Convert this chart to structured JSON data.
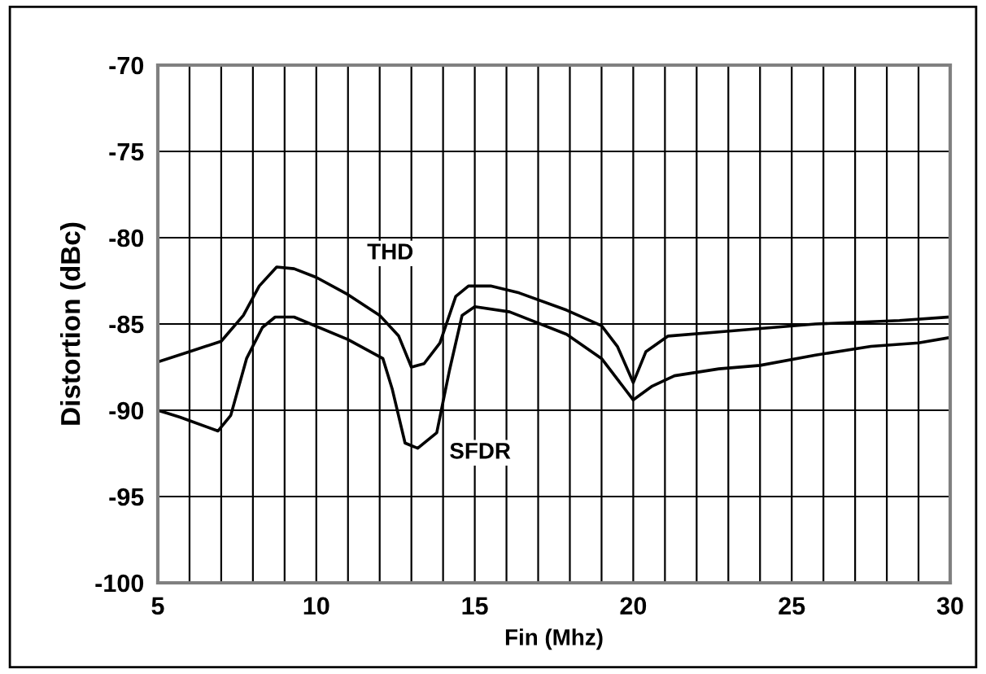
{
  "chart_data": {
    "type": "line",
    "xlabel": "Fin (Mhz)",
    "ylabel": "Distortion (dBc)",
    "xlim": [
      5,
      30
    ],
    "ylim": [
      -100,
      -70
    ],
    "xticks": [
      5,
      {
        "value": 6,
        "label": null
      },
      {
        "value": 7,
        "label": null
      },
      {
        "value": 8,
        "label": null
      },
      {
        "value": 9,
        "label": null
      },
      10,
      {
        "value": 11,
        "label": null
      },
      {
        "value": 12,
        "label": null
      },
      {
        "value": 13,
        "label": null
      },
      {
        "value": 14,
        "label": null
      },
      15,
      {
        "value": 16,
        "label": null
      },
      {
        "value": 17,
        "label": null
      },
      {
        "value": 18,
        "label": null
      },
      {
        "value": 19,
        "label": null
      },
      20,
      {
        "value": 21,
        "label": null
      },
      {
        "value": 22,
        "label": null
      },
      {
        "value": 23,
        "label": null
      },
      {
        "value": 24,
        "label": null
      },
      25,
      {
        "value": 26,
        "label": null
      },
      {
        "value": 27,
        "label": null
      },
      {
        "value": 28,
        "label": null
      },
      {
        "value": 29,
        "label": null
      },
      30
    ],
    "yticks": [
      -100,
      -95,
      -90,
      -85,
      -80,
      -75,
      -70
    ],
    "grid": true,
    "legend": false,
    "series": [
      {
        "name": "THD",
        "color": "#000000",
        "x": [
          5,
          6,
          7,
          7.7,
          8.2,
          8.75,
          9.3,
          10,
          11,
          12,
          12.6,
          13,
          13.4,
          13.9,
          14.4,
          14.8,
          15.5,
          16.4,
          17.9,
          19,
          19.5,
          20,
          20.4,
          21.1,
          23.1,
          25.75,
          28.4,
          29.95
        ],
        "values": [
          -87.2,
          -86.6,
          -86.0,
          -84.5,
          -82.8,
          -81.7,
          -81.8,
          -82.3,
          -83.3,
          -84.5,
          -85.7,
          -87.5,
          -87.3,
          -86.1,
          -83.4,
          -82.8,
          -82.8,
          -83.2,
          -84.2,
          -85.1,
          -86.3,
          -88.4,
          -86.6,
          -85.7,
          -85.4,
          -85.0,
          -84.8,
          -84.6
        ]
      },
      {
        "name": "SFDR",
        "color": "#000000",
        "x": [
          5,
          5.7,
          6.9,
          7.3,
          7.8,
          8.3,
          8.7,
          9.3,
          11,
          12.1,
          12.4,
          12.8,
          13.2,
          13.8,
          14.2,
          14.6,
          15,
          16.1,
          17.9,
          19,
          20,
          20.6,
          21.3,
          22.7,
          24,
          25.75,
          27.5,
          29,
          29.95
        ],
        "values": [
          -90.0,
          -90.4,
          -91.2,
          -90.3,
          -87.0,
          -85.2,
          -84.6,
          -84.6,
          -85.9,
          -87.0,
          -88.8,
          -91.9,
          -92.2,
          -91.3,
          -87.7,
          -84.5,
          -84.0,
          -84.3,
          -85.6,
          -87.0,
          -89.4,
          -88.6,
          -88.0,
          -87.6,
          -87.4,
          -86.8,
          -86.3,
          -86.1,
          -85.8
        ]
      }
    ]
  }
}
